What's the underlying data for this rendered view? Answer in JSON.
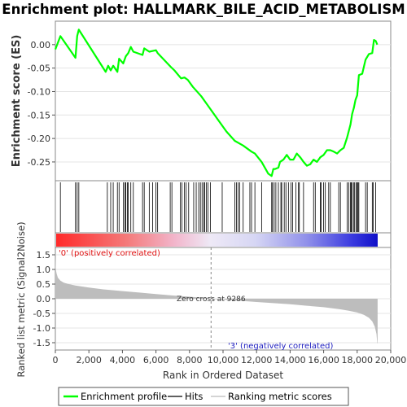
{
  "chart_data": {
    "type": "line",
    "title": "Enrichment plot: HALLMARK_BILE_ACID_METABOLISM",
    "es_panel": {
      "ylabel": "Enrichment score (ES)",
      "ylim": [
        -0.29,
        0.05
      ],
      "yticks": [
        0.0,
        -0.05,
        -0.1,
        -0.15,
        -0.2,
        -0.25
      ],
      "ytick_labels": [
        "0.00",
        "-0.05",
        "-0.10",
        "-0.15",
        "-0.20",
        "-0.25"
      ],
      "series": [
        {
          "name": "Enrichment profile",
          "color": "#00ff00",
          "x": [
            0,
            300,
            1200,
            1300,
            1400,
            3000,
            3150,
            3300,
            3450,
            3700,
            3800,
            4050,
            4200,
            4350,
            4500,
            4650,
            5200,
            5300,
            5600,
            6000,
            6100,
            6900,
            7100,
            7500,
            7700,
            7900,
            8200,
            8700,
            9200,
            9700,
            10200,
            10700,
            11200,
            11700,
            11900,
            12300,
            12700,
            12900,
            13000,
            13100,
            13300,
            13400,
            13600,
            13800,
            14000,
            14200,
            14400,
            14600,
            14800,
            15000,
            15200,
            15400,
            15600,
            15800,
            16000,
            16200,
            16400,
            16600,
            16800,
            17000,
            17200,
            17400,
            17600,
            17700,
            17800,
            17900,
            18000,
            18100,
            18300,
            18500,
            18700,
            18900,
            19000,
            19100,
            19200
          ],
          "y": [
            -0.01,
            0.018,
            -0.028,
            0.018,
            0.032,
            -0.058,
            -0.045,
            -0.055,
            -0.045,
            -0.058,
            -0.03,
            -0.04,
            -0.025,
            -0.018,
            -0.005,
            -0.015,
            -0.022,
            -0.008,
            -0.015,
            -0.012,
            -0.018,
            -0.048,
            -0.055,
            -0.072,
            -0.07,
            -0.075,
            -0.09,
            -0.11,
            -0.135,
            -0.16,
            -0.185,
            -0.205,
            -0.215,
            -0.228,
            -0.232,
            -0.25,
            -0.275,
            -0.28,
            -0.265,
            -0.265,
            -0.262,
            -0.25,
            -0.245,
            -0.235,
            -0.245,
            -0.245,
            -0.232,
            -0.24,
            -0.25,
            -0.258,
            -0.255,
            -0.245,
            -0.25,
            -0.24,
            -0.235,
            -0.225,
            -0.225,
            -0.228,
            -0.232,
            -0.225,
            -0.22,
            -0.198,
            -0.17,
            -0.148,
            -0.135,
            -0.118,
            -0.108,
            -0.065,
            -0.062,
            -0.032,
            -0.02,
            -0.018,
            0.01,
            0.008,
            0.0
          ]
        }
      ]
    },
    "hits": [
      300,
      1200,
      1300,
      1400,
      3100,
      3300,
      3450,
      3700,
      3800,
      4050,
      4150,
      4200,
      4300,
      4350,
      4500,
      4650,
      5200,
      5300,
      5600,
      5800,
      6000,
      6100,
      6850,
      6950,
      7450,
      7550,
      7700,
      7800,
      7950,
      8250,
      8400,
      8550,
      8650,
      8750,
      8850,
      8900,
      9000,
      9100,
      9250,
      9950,
      10700,
      10800,
      10900,
      11000,
      11200,
      11600,
      11700,
      11900,
      12300,
      12900,
      12950,
      13050,
      13150,
      13300,
      13450,
      13500,
      13650,
      13750,
      13900,
      14050,
      14150,
      14350,
      14500,
      14550,
      14800,
      15400,
      15500,
      15800,
      15850,
      16000,
      16100,
      16300,
      16400,
      16900,
      17000,
      17400,
      17500,
      17600,
      17650,
      17700,
      17800,
      17850,
      17950,
      18000,
      18050,
      18100,
      18500,
      18600,
      18900,
      18950,
      19100
    ],
    "metric_panel": {
      "ylabel": "Ranked list metric (Signal2Noise)",
      "ylim": [
        -1.5,
        1.5
      ],
      "yticks": [
        1.5,
        1.0,
        0.5,
        0.0,
        -0.5,
        -1.0,
        -1.5
      ],
      "ytick_labels": [
        "1.5",
        "1.0",
        "0.5",
        "0.0",
        "-0.5",
        "-1.0",
        "-1.5"
      ],
      "profile_x": [
        0,
        30,
        80,
        150,
        300,
        500,
        800,
        1200,
        2000,
        3000,
        4000,
        5000,
        6000,
        7000,
        8000,
        8800,
        9286,
        10000,
        11000,
        12000,
        13000,
        14000,
        15000,
        16000,
        17000,
        17500,
        18000,
        18400,
        18700,
        18900,
        19050,
        19150,
        19200,
        19220
      ],
      "profile_y": [
        1.45,
        1.0,
        0.85,
        0.72,
        0.62,
        0.55,
        0.5,
        0.45,
        0.38,
        0.31,
        0.26,
        0.21,
        0.16,
        0.11,
        0.07,
        0.03,
        0.0,
        -0.03,
        -0.07,
        -0.11,
        -0.15,
        -0.19,
        -0.24,
        -0.29,
        -0.36,
        -0.41,
        -0.47,
        -0.55,
        -0.65,
        -0.77,
        -0.95,
        -1.2,
        -1.52,
        -1.52
      ],
      "zero_cross_label": "Zero cross at 9286",
      "zero_cross": 9286,
      "pos_label": "'0' (positively correlated)",
      "neg_label": "'3' (negatively correlated)"
    },
    "xaxis": {
      "label": "Rank in Ordered Dataset",
      "xlim": [
        0,
        20000
      ],
      "ticks": [
        0,
        2000,
        4000,
        6000,
        8000,
        10000,
        12000,
        14000,
        16000,
        18000,
        20000
      ],
      "tick_labels": [
        "0",
        "2,000",
        "4,000",
        "6,000",
        "8,000",
        "10,000",
        "12,000",
        "14,000",
        "16,000",
        "18,000",
        "20,000"
      ],
      "n_genes": 19222
    },
    "legend": {
      "position": "bottom",
      "entries": [
        {
          "label": "Enrichment profile",
          "color": "#00ff00"
        },
        {
          "label": "Hits",
          "color": "#000000"
        },
        {
          "label": "Ranking metric scores",
          "color": "#bbbbbb"
        }
      ]
    }
  }
}
